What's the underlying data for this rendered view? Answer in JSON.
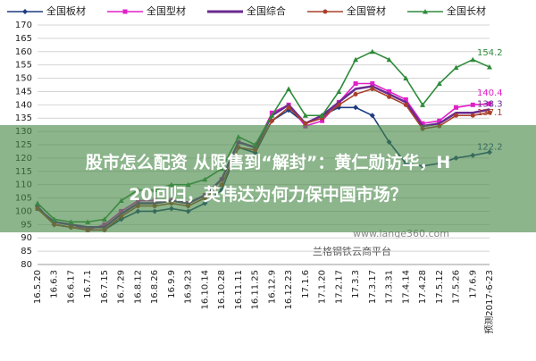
{
  "chart_data": {
    "type": "line",
    "categories": [
      "16.5.20",
      "16.6.3",
      "16.6.17",
      "16.7.1",
      "16.7.15",
      "16.7.29",
      "16.8.12",
      "16.8.26",
      "16.9.9",
      "16.9.23",
      "16.10.14",
      "16.10.28",
      "16.11.11",
      "16.11.25",
      "16.12.9",
      "16.12.23",
      "17.1.6",
      "17.1.20",
      "17.2.17",
      "17.3.3",
      "17.3.17",
      "17.3.31",
      "17.4.14",
      "17.4.28",
      "17.5.12",
      "17.5.26",
      "17.6.9",
      "预测2017-6-23"
    ],
    "series": [
      {
        "name": "全国板材",
        "color": "#1f3c80",
        "marker": "diamond",
        "values": [
          102,
          95,
          94,
          93,
          93,
          97,
          100,
          100,
          101,
          100,
          103,
          108,
          124,
          122,
          134,
          138,
          133,
          136,
          139,
          139,
          136,
          126,
          118,
          117,
          118,
          120,
          121,
          122.2
        ]
      },
      {
        "name": "全国型材",
        "color": "#e020c8",
        "marker": "square",
        "values": [
          101,
          96,
          95,
          93,
          95,
          100,
          104,
          104,
          104,
          103,
          106,
          112,
          126,
          124,
          137,
          140,
          132,
          134,
          141,
          148,
          148,
          145,
          142,
          133,
          134,
          139,
          140,
          140.4
        ]
      },
      {
        "name": "全国综合",
        "color": "#6a2a90",
        "marker": "none",
        "values": [
          101,
          96,
          95,
          94,
          94,
          99,
          103,
          103,
          104,
          103,
          106,
          112,
          126,
          124,
          136,
          140,
          133,
          136,
          141,
          146,
          147,
          144,
          141,
          132,
          133,
          137,
          137,
          138.3
        ]
      },
      {
        "name": "全国管材",
        "color": "#a8402a",
        "marker": "circle",
        "values": [
          101,
          95,
          94,
          93,
          93,
          98,
          102,
          102,
          103,
          102,
          105,
          110,
          124,
          123,
          134,
          139,
          133,
          135,
          140,
          144,
          146,
          143,
          140,
          131,
          132,
          136,
          136,
          137.1
        ]
      },
      {
        "name": "全国长材",
        "color": "#2e8b3a",
        "marker": "triangle",
        "values": [
          103,
          97,
          96,
          96,
          97,
          104,
          108,
          108,
          110,
          110,
          112,
          116,
          128,
          125,
          136,
          146,
          136,
          136,
          145,
          157,
          160,
          157,
          150,
          140,
          148,
          154,
          157,
          154.2
        ]
      }
    ],
    "ylim": [
      80,
      170
    ],
    "yticks": [
      80,
      85,
      90,
      95,
      100,
      105,
      110,
      115,
      120,
      125,
      130,
      135,
      140,
      145,
      150,
      155,
      160,
      165,
      170
    ],
    "grid": true,
    "annotations": [
      "www.lange360.com",
      "兰格钢铁云商平台"
    ]
  },
  "overlay": {
    "headline": [
      "股市怎么配资 从限售到“解封”：黄仁勋访华，H",
      "20回归，英伟达为何力保中国市场？"
    ]
  }
}
